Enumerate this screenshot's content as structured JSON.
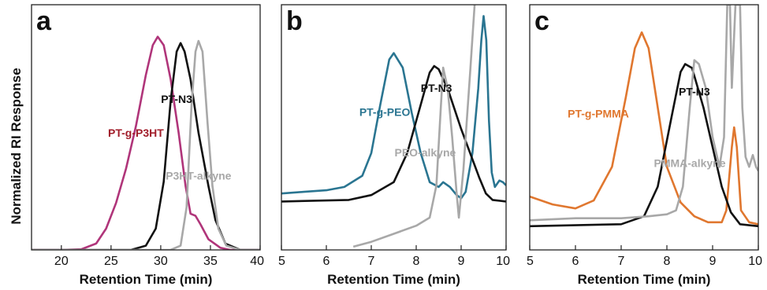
{
  "ylabel": "Normalized RI Response",
  "colors": {
    "black": "#111111",
    "gray": "#a8a8a8",
    "magenta": "#b0357a",
    "red_label": "#a11d2a",
    "teal": "#2a7591",
    "orange": "#e0772f"
  },
  "chart_data": [
    {
      "type": "line",
      "panel": "a",
      "xlabel": "Retention Time (min)",
      "xlim": [
        17,
        40
      ],
      "ylim": [
        0,
        1.15
      ],
      "xticks": [
        20,
        25,
        30,
        35,
        40
      ],
      "series": [
        {
          "name": "PT-g-P3HT",
          "color": "#b0357a",
          "label_color": "#a11d2a",
          "label_at": [
            27.5,
            0.53
          ],
          "points": [
            [
              17,
              0.0
            ],
            [
              20,
              0.0
            ],
            [
              22,
              0.003
            ],
            [
              23.5,
              0.03
            ],
            [
              24.5,
              0.1
            ],
            [
              25.5,
              0.22
            ],
            [
              26.5,
              0.38
            ],
            [
              27.5,
              0.58
            ],
            [
              28.5,
              0.82
            ],
            [
              29.2,
              0.96
            ],
            [
              29.7,
              1.0
            ],
            [
              30.3,
              0.96
            ],
            [
              31,
              0.8
            ],
            [
              31.8,
              0.55
            ],
            [
              32.5,
              0.3
            ],
            [
              33,
              0.17
            ],
            [
              33.5,
              0.16
            ],
            [
              34,
              0.12
            ],
            [
              34.8,
              0.05
            ],
            [
              36,
              0.01
            ],
            [
              37,
              0.0
            ],
            [
              40,
              0.0
            ]
          ]
        },
        {
          "name": "PT-N3",
          "color": "#111111",
          "label_color": "#111111",
          "label_at": [
            31.6,
            0.69
          ],
          "points": [
            [
              17,
              0.0
            ],
            [
              27,
              0.0
            ],
            [
              28.5,
              0.02
            ],
            [
              29.5,
              0.1
            ],
            [
              30.3,
              0.32
            ],
            [
              31,
              0.7
            ],
            [
              31.6,
              0.93
            ],
            [
              32,
              0.97
            ],
            [
              32.4,
              0.93
            ],
            [
              33,
              0.8
            ],
            [
              33.8,
              0.55
            ],
            [
              34.8,
              0.3
            ],
            [
              35.5,
              0.14
            ],
            [
              36.5,
              0.03
            ],
            [
              38,
              0.0
            ],
            [
              40,
              0.0
            ]
          ]
        },
        {
          "name": "P3HT-alkyne",
          "color": "#a8a8a8",
          "label_color": "#a8a8a8",
          "label_at": [
            33.8,
            0.33
          ],
          "points": [
            [
              17,
              0.0
            ],
            [
              31,
              0.0
            ],
            [
              32,
              0.02
            ],
            [
              32.6,
              0.2
            ],
            [
              33.1,
              0.68
            ],
            [
              33.5,
              0.93
            ],
            [
              33.8,
              0.98
            ],
            [
              34.2,
              0.93
            ],
            [
              34.7,
              0.6
            ],
            [
              35.2,
              0.3
            ],
            [
              35.8,
              0.1
            ],
            [
              36.6,
              0.02
            ],
            [
              38,
              0.0
            ],
            [
              40,
              0.0
            ]
          ]
        }
      ]
    },
    {
      "type": "line",
      "panel": "b",
      "xlabel": "Retention Time (min)",
      "xlim": [
        5,
        10
      ],
      "ylim": [
        -0.3,
        1.22
      ],
      "xticks": [
        5,
        6,
        7,
        8,
        9,
        10
      ],
      "series": [
        {
          "name": "PT-g-PEO",
          "color": "#2a7591",
          "label_color": "#2a7591",
          "label_at": [
            7.3,
            0.53
          ],
          "points": [
            [
              5,
              0.05
            ],
            [
              5.5,
              0.06
            ],
            [
              6,
              0.07
            ],
            [
              6.4,
              0.09
            ],
            [
              6.8,
              0.16
            ],
            [
              7.0,
              0.3
            ],
            [
              7.2,
              0.6
            ],
            [
              7.4,
              0.88
            ],
            [
              7.5,
              0.92
            ],
            [
              7.7,
              0.83
            ],
            [
              7.9,
              0.55
            ],
            [
              8.1,
              0.3
            ],
            [
              8.3,
              0.12
            ],
            [
              8.5,
              0.09
            ],
            [
              8.6,
              0.12
            ],
            [
              8.75,
              0.09
            ],
            [
              8.9,
              0.04
            ],
            [
              9.0,
              0.02
            ],
            [
              9.1,
              0.06
            ],
            [
              9.25,
              0.3
            ],
            [
              9.38,
              0.7
            ],
            [
              9.45,
              1.0
            ],
            [
              9.5,
              1.15
            ],
            [
              9.56,
              1.0
            ],
            [
              9.62,
              0.5
            ],
            [
              9.68,
              0.18
            ],
            [
              9.75,
              0.09
            ],
            [
              9.85,
              0.13
            ],
            [
              9.93,
              0.12
            ],
            [
              10,
              0.1
            ]
          ]
        },
        {
          "name": "PT-N3",
          "color": "#111111",
          "label_color": "#111111",
          "label_at": [
            8.45,
            0.68
          ],
          "points": [
            [
              5,
              0.0
            ],
            [
              6.5,
              0.01
            ],
            [
              7.0,
              0.04
            ],
            [
              7.5,
              0.12
            ],
            [
              7.8,
              0.3
            ],
            [
              8.1,
              0.6
            ],
            [
              8.3,
              0.8
            ],
            [
              8.4,
              0.84
            ],
            [
              8.5,
              0.82
            ],
            [
              8.7,
              0.7
            ],
            [
              9.0,
              0.45
            ],
            [
              9.2,
              0.3
            ],
            [
              9.4,
              0.15
            ],
            [
              9.55,
              0.05
            ],
            [
              9.7,
              0.01
            ],
            [
              10,
              0.0
            ]
          ]
        },
        {
          "name": "PEO-alkyne",
          "color": "#a8a8a8",
          "label_color": "#a8a8a8",
          "label_at": [
            8.2,
            0.28
          ],
          "points": [
            [
              6.6,
              -0.28
            ],
            [
              7.0,
              -0.25
            ],
            [
              7.5,
              -0.2
            ],
            [
              8.0,
              -0.15
            ],
            [
              8.3,
              -0.1
            ],
            [
              8.45,
              0.1
            ],
            [
              8.55,
              0.6
            ],
            [
              8.6,
              0.83
            ],
            [
              8.7,
              0.7
            ],
            [
              8.8,
              0.4
            ],
            [
              8.9,
              0.05
            ],
            [
              8.95,
              -0.1
            ],
            [
              9.05,
              0.2
            ],
            [
              9.2,
              0.8
            ],
            [
              9.3,
              1.22
            ]
          ]
        }
      ]
    },
    {
      "type": "line",
      "panel": "c",
      "xlabel": "Retention Time (min)",
      "xlim": [
        5,
        10
      ],
      "ylim": [
        -0.12,
        1.12
      ],
      "xticks": [
        5,
        6,
        7,
        8,
        9,
        10
      ],
      "series": [
        {
          "name": "PT-g-PMMA",
          "color": "#e0772f",
          "label_color": "#e0772f",
          "label_at": [
            6.5,
            0.55
          ],
          "points": [
            [
              5,
              0.15
            ],
            [
              5.5,
              0.11
            ],
            [
              6,
              0.09
            ],
            [
              6.4,
              0.13
            ],
            [
              6.8,
              0.3
            ],
            [
              7.1,
              0.65
            ],
            [
              7.3,
              0.9
            ],
            [
              7.45,
              0.98
            ],
            [
              7.6,
              0.9
            ],
            [
              7.8,
              0.6
            ],
            [
              8.0,
              0.3
            ],
            [
              8.3,
              0.12
            ],
            [
              8.6,
              0.05
            ],
            [
              8.9,
              0.02
            ],
            [
              9.2,
              0.02
            ],
            [
              9.3,
              0.08
            ],
            [
              9.42,
              0.4
            ],
            [
              9.47,
              0.5
            ],
            [
              9.53,
              0.4
            ],
            [
              9.62,
              0.08
            ],
            [
              9.8,
              0.02
            ],
            [
              10,
              0.01
            ]
          ]
        },
        {
          "name": "PT-N3",
          "color": "#111111",
          "label_color": "#111111",
          "label_at": [
            8.6,
            0.66
          ],
          "points": [
            [
              5,
              0.0
            ],
            [
              7.0,
              0.01
            ],
            [
              7.5,
              0.05
            ],
            [
              7.8,
              0.2
            ],
            [
              8.1,
              0.55
            ],
            [
              8.3,
              0.78
            ],
            [
              8.4,
              0.82
            ],
            [
              8.55,
              0.8
            ],
            [
              8.8,
              0.6
            ],
            [
              9.0,
              0.4
            ],
            [
              9.2,
              0.2
            ],
            [
              9.4,
              0.07
            ],
            [
              9.6,
              0.01
            ],
            [
              10,
              0.0
            ]
          ]
        },
        {
          "name": "PMMA-alkyne",
          "color": "#a8a8a8",
          "label_color": "#a8a8a8",
          "label_at": [
            8.5,
            0.3
          ],
          "points": [
            [
              5,
              0.03
            ],
            [
              6,
              0.04
            ],
            [
              7,
              0.04
            ],
            [
              7.6,
              0.05
            ],
            [
              8.0,
              0.06
            ],
            [
              8.2,
              0.08
            ],
            [
              8.35,
              0.2
            ],
            [
              8.5,
              0.6
            ],
            [
              8.6,
              0.84
            ],
            [
              8.7,
              0.82
            ],
            [
              8.85,
              0.7
            ],
            [
              9.0,
              0.45
            ],
            [
              9.15,
              0.3
            ],
            [
              9.25,
              0.45
            ],
            [
              9.32,
              1.12
            ],
            [
              9.38,
              1.12
            ],
            [
              9.42,
              0.7
            ],
            [
              9.5,
              1.12
            ],
            [
              9.6,
              1.12
            ],
            [
              9.65,
              0.6
            ],
            [
              9.72,
              0.35
            ],
            [
              9.8,
              0.3
            ],
            [
              9.88,
              0.36
            ],
            [
              9.95,
              0.3
            ],
            [
              10,
              0.28
            ]
          ]
        }
      ]
    }
  ]
}
